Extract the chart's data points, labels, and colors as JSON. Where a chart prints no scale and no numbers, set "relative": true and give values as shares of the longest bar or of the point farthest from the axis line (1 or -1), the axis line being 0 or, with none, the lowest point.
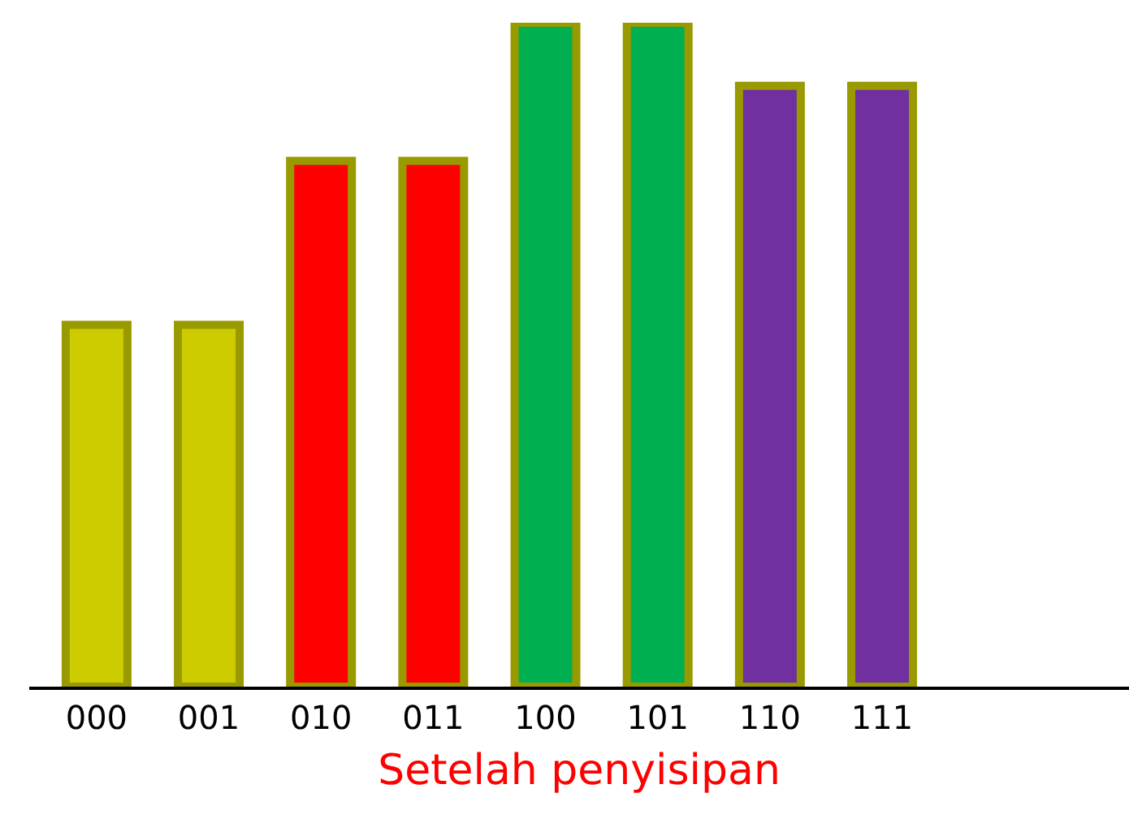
{
  "chart_data": {
    "type": "bar",
    "relative": true,
    "xlabel": "Setelah penyisipan",
    "categories": [
      "000",
      "001",
      "010",
      "011",
      "100",
      "101",
      "110",
      "111"
    ],
    "values": [
      0.545,
      0.545,
      0.792,
      0.792,
      1,
      1,
      0.905,
      0.905
    ],
    "colors": [
      "#cccc00",
      "#cccc00",
      "#ff0000",
      "#ff0000",
      "#00b050",
      "#00b050",
      "#7030a0",
      "#7030a0"
    ],
    "data_labels": false
  }
}
